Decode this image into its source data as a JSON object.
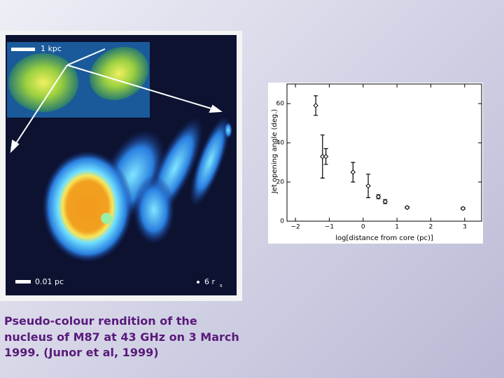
{
  "image": {
    "scale_top": "1 kpc",
    "scale_bottom": "0.01 pc",
    "resolution": "6 r",
    "resolution_subscript": "s"
  },
  "caption": [
    "Pseudo-colour rendition of the",
    "nucleus of M87 at 43 GHz on 3 March",
    "1999. (Junor et al, 1999)"
  ],
  "chart_data": {
    "type": "errorbar",
    "x_label": "log[distance from core (pc)]",
    "y_label": "Jet opening angle (deg.)",
    "x": [
      -1.4,
      -1.2,
      -1.1,
      -0.3,
      0.15,
      0.45,
      0.65,
      1.3,
      2.95
    ],
    "values": [
      59,
      33,
      33,
      25,
      18,
      12.5,
      10,
      7,
      6.5
    ],
    "errors": [
      5,
      11,
      4,
      5,
      6,
      1,
      1,
      0.5,
      0.5
    ],
    "color": "#000000",
    "xlim": [
      -2.25,
      3.5
    ],
    "ylim": [
      0,
      70
    ],
    "xticks": [
      {
        "value": -2,
        "label": "−2"
      },
      {
        "value": -1,
        "label": "−1"
      },
      0,
      1,
      2,
      3
    ],
    "yticks": [
      0,
      20,
      40,
      60
    ]
  }
}
